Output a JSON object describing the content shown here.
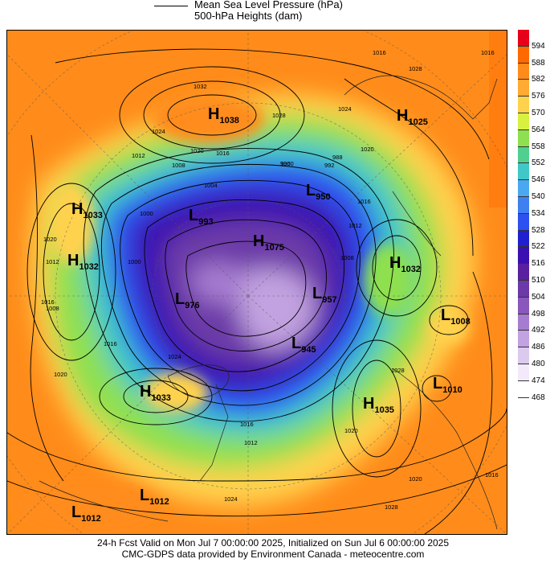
{
  "legend": {
    "line1": "Mean Sea Level Pressure (hPa)",
    "line2": "500-hPa Heights (dam)"
  },
  "colorbar": {
    "levels": [
      "594",
      "588",
      "582",
      "576",
      "570",
      "564",
      "558",
      "552",
      "546",
      "540",
      "534",
      "528",
      "522",
      "516",
      "510",
      "504",
      "498",
      "492",
      "486",
      "480",
      "474",
      "468"
    ],
    "colors": [
      "#e8001a",
      "#ff6a00",
      "#ff8c1a",
      "#ffaa33",
      "#ffd24d",
      "#d8f040",
      "#8ee050",
      "#50d090",
      "#40c8c8",
      "#4aa8f0",
      "#3f80f0",
      "#2d50f0",
      "#2020d0",
      "#3a10b0",
      "#5a20a0",
      "#6c3aa8",
      "#8a58bc",
      "#a67cd0",
      "#c2a2e0",
      "#dccaee",
      "#f2eafa",
      "#ffffff"
    ]
  },
  "systems": [
    {
      "type": "H",
      "value": "1038"
    },
    {
      "type": "H",
      "value": "1025"
    },
    {
      "type": "H",
      "value": "1033"
    },
    {
      "type": "H",
      "value": "1032"
    },
    {
      "type": "L",
      "value": "950"
    },
    {
      "type": "L",
      "value": "993"
    },
    {
      "type": "H",
      "value": "1075"
    },
    {
      "type": "H",
      "value": "1032"
    },
    {
      "type": "L",
      "value": "957"
    },
    {
      "type": "L",
      "value": "976"
    },
    {
      "type": "L",
      "value": "1008"
    },
    {
      "type": "L",
      "value": "945"
    },
    {
      "type": "L",
      "value": "1010"
    },
    {
      "type": "H",
      "value": "1033"
    },
    {
      "type": "H",
      "value": "1035"
    },
    {
      "type": "L",
      "value": "1012"
    },
    {
      "type": "L",
      "value": "1012"
    }
  ],
  "contour_labels": [
    "1032",
    "1028",
    "1024",
    "1020",
    "1016",
    "1012",
    "1008",
    "1004",
    "1000",
    "996",
    "992",
    "988",
    "1016",
    "1016",
    "1028",
    "1024",
    "1020",
    "1016",
    "1012",
    "1008",
    "1020",
    "1016",
    "1012",
    "1008",
    "1020",
    "1016",
    "1024",
    "1028",
    "1020",
    "1016",
    "1012",
    "1000",
    "1000",
    "1020",
    "1024",
    "1028",
    "1016"
  ],
  "footer": {
    "line1": "24-h Fcst Valid on Mon Jul  7 00:00:00 2025, Initialized on Sun Jul  6 00:00:00 2025",
    "line2": "CMC-GDPS data provided by Environment Canada - meteocentre.com"
  }
}
